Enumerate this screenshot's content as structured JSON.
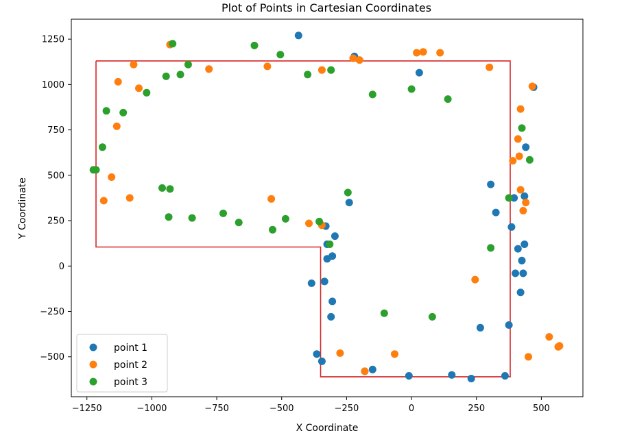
{
  "chart_data": {
    "type": "scatter",
    "title": "Plot of Points in Cartesian Coordinates",
    "xlabel": "X Coordinate",
    "ylabel": "Y Coordinate",
    "xlim": [
      -1310,
      660
    ],
    "ylim": [
      -720,
      1360
    ],
    "xticks": [
      -1250,
      -1000,
      -750,
      -500,
      -250,
      0,
      250,
      500
    ],
    "yticks": [
      -500,
      -250,
      0,
      250,
      500,
      750,
      1000,
      1250
    ],
    "grid": false,
    "legend": "lower-left",
    "series": [
      {
        "name": "point 1",
        "color": "#1f77b4",
        "points": [
          [
            -435,
            1270
          ],
          [
            -220,
            1155
          ],
          [
            30,
            1065
          ],
          [
            470,
            985
          ],
          [
            440,
            655
          ],
          [
            305,
            450
          ],
          [
            395,
            375
          ],
          [
            435,
            385
          ],
          [
            325,
            295
          ],
          [
            385,
            215
          ],
          [
            435,
            120
          ],
          [
            410,
            95
          ],
          [
            425,
            30
          ],
          [
            400,
            -40
          ],
          [
            430,
            -40
          ],
          [
            420,
            -145
          ],
          [
            -240,
            350
          ],
          [
            -330,
            220
          ],
          [
            -295,
            165
          ],
          [
            -325,
            120
          ],
          [
            -305,
            55
          ],
          [
            -325,
            40
          ],
          [
            -335,
            -85
          ],
          [
            -385,
            -95
          ],
          [
            -305,
            -195
          ],
          [
            -310,
            -280
          ],
          [
            375,
            -325
          ],
          [
            265,
            -340
          ],
          [
            -365,
            -485
          ],
          [
            -345,
            -525
          ],
          [
            -150,
            -570
          ],
          [
            -180,
            -580
          ],
          [
            -10,
            -605
          ],
          [
            155,
            -600
          ],
          [
            230,
            -620
          ],
          [
            360,
            -605
          ]
        ]
      },
      {
        "name": "point 2",
        "color": "#ff7f0e",
        "points": [
          [
            -930,
            1220
          ],
          [
            -1070,
            1110
          ],
          [
            -1130,
            1015
          ],
          [
            -1050,
            980
          ],
          [
            -780,
            1085
          ],
          [
            -555,
            1100
          ],
          [
            -345,
            1080
          ],
          [
            -225,
            1145
          ],
          [
            -200,
            1135
          ],
          [
            20,
            1175
          ],
          [
            45,
            1180
          ],
          [
            110,
            1175
          ],
          [
            300,
            1095
          ],
          [
            465,
            990
          ],
          [
            420,
            865
          ],
          [
            410,
            700
          ],
          [
            415,
            605
          ],
          [
            390,
            580
          ],
          [
            420,
            420
          ],
          [
            440,
            350
          ],
          [
            430,
            305
          ],
          [
            -1135,
            770
          ],
          [
            -1155,
            490
          ],
          [
            -1185,
            360
          ],
          [
            -1085,
            375
          ],
          [
            -540,
            370
          ],
          [
            -395,
            235
          ],
          [
            -345,
            225
          ],
          [
            245,
            -75
          ],
          [
            530,
            -390
          ],
          [
            565,
            -445
          ],
          [
            570,
            -440
          ],
          [
            -275,
            -480
          ],
          [
            -65,
            -485
          ],
          [
            450,
            -500
          ],
          [
            -180,
            -580
          ]
        ]
      },
      {
        "name": "point 3",
        "color": "#2ca02c",
        "points": [
          [
            -920,
            1225
          ],
          [
            -605,
            1215
          ],
          [
            -505,
            1165
          ],
          [
            -860,
            1110
          ],
          [
            -890,
            1055
          ],
          [
            -945,
            1045
          ],
          [
            -400,
            1055
          ],
          [
            -310,
            1080
          ],
          [
            -1020,
            955
          ],
          [
            -150,
            945
          ],
          [
            0,
            975
          ],
          [
            140,
            920
          ],
          [
            -1175,
            855
          ],
          [
            -1110,
            845
          ],
          [
            425,
            760
          ],
          [
            455,
            585
          ],
          [
            -1190,
            655
          ],
          [
            -1225,
            530
          ],
          [
            -1215,
            530
          ],
          [
            -960,
            430
          ],
          [
            -930,
            425
          ],
          [
            -935,
            270
          ],
          [
            -845,
            265
          ],
          [
            -725,
            290
          ],
          [
            -665,
            240
          ],
          [
            -535,
            200
          ],
          [
            -485,
            260
          ],
          [
            -355,
            245
          ],
          [
            -245,
            405
          ],
          [
            375,
            375
          ],
          [
            -315,
            120
          ],
          [
            305,
            100
          ],
          [
            -105,
            -260
          ],
          [
            80,
            -280
          ]
        ]
      }
    ],
    "polygon": {
      "color": "#d62728",
      "vertices": [
        [
          -1215,
          1130
        ],
        [
          380,
          1130
        ],
        [
          380,
          -610
        ],
        [
          -350,
          -610
        ],
        [
          -350,
          105
        ],
        [
          -1215,
          105
        ],
        [
          -1215,
          1130
        ]
      ]
    }
  }
}
